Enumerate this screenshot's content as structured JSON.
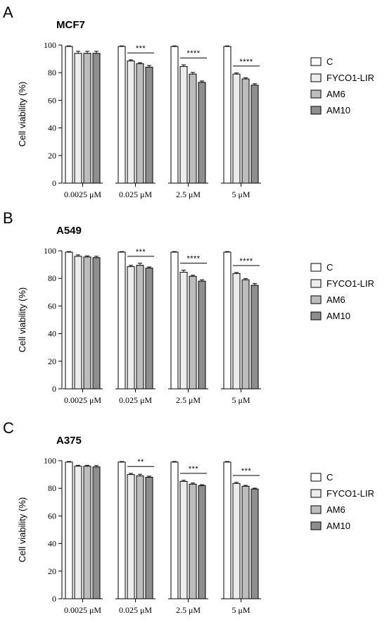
{
  "ylabel": "Cell viability (%)",
  "categories": [
    "0.0025 μM",
    "0.025 μM",
    "2.5 μM",
    "5 μM"
  ],
  "legend": [
    {
      "name": "C",
      "color": "#ffffff"
    },
    {
      "name": "FYCO1-LIR",
      "color": "#ececec"
    },
    {
      "name": "AM6",
      "color": "#bdbdbd"
    },
    {
      "name": "AM10",
      "color": "#8e8e8e"
    }
  ],
  "chart_data": [
    {
      "type": "bar",
      "panel_letter": "A",
      "title": "MCF7",
      "ylabel": "Cell viability (%)",
      "ylim": [
        0,
        100
      ],
      "yticks": [
        0,
        20,
        40,
        60,
        80,
        100
      ],
      "categories": [
        "0.0025 μM",
        "0.025 μM",
        "2.5 μM",
        "5 μM"
      ],
      "series": [
        {
          "name": "C",
          "values": [
            99,
            99,
            99,
            99
          ],
          "errors": [
            0.4,
            0.4,
            0.4,
            0.4
          ]
        },
        {
          "name": "FYCO1-LIR",
          "values": [
            94,
            88.5,
            84.5,
            79
          ],
          "errors": [
            1.5,
            0.8,
            1.2,
            0.8
          ]
        },
        {
          "name": "AM6",
          "values": [
            94,
            86.5,
            79,
            75.5
          ],
          "errors": [
            1.5,
            0.8,
            1.2,
            0.8
          ]
        },
        {
          "name": "AM10",
          "values": [
            94,
            84,
            73,
            71
          ],
          "errors": [
            1.5,
            1.2,
            1.0,
            1.0
          ]
        }
      ],
      "significance": [
        "",
        "***",
        "****",
        "****"
      ]
    },
    {
      "type": "bar",
      "panel_letter": "B",
      "title": "A549",
      "ylabel": "Cell viability (%)",
      "ylim": [
        0,
        100
      ],
      "yticks": [
        0,
        20,
        40,
        60,
        80,
        100
      ],
      "categories": [
        "0.0025 μM",
        "0.025 μM",
        "2.5 μM",
        "5 μM"
      ],
      "series": [
        {
          "name": "C",
          "values": [
            99,
            99,
            99,
            99
          ],
          "errors": [
            0.4,
            0.4,
            0.4,
            0.4
          ]
        },
        {
          "name": "FYCO1-LIR",
          "values": [
            96,
            88.5,
            84.5,
            83.5
          ],
          "errors": [
            1.0,
            1.0,
            1.5,
            0.8
          ]
        },
        {
          "name": "AM6",
          "values": [
            95.5,
            89.5,
            81.5,
            79
          ],
          "errors": [
            0.8,
            1.5,
            0.8,
            0.8
          ]
        },
        {
          "name": "AM10",
          "values": [
            95,
            87.5,
            78,
            75
          ],
          "errors": [
            1.0,
            0.8,
            1.0,
            1.2
          ]
        }
      ],
      "significance": [
        "",
        "***",
        "****",
        "****"
      ]
    },
    {
      "type": "bar",
      "panel_letter": "C",
      "title": "A375",
      "ylabel": "Cell viability (%)",
      "ylim": [
        0,
        100
      ],
      "yticks": [
        0,
        20,
        40,
        60,
        80,
        100
      ],
      "categories": [
        "0.0025 μM",
        "0.025 μM",
        "2.5 μM",
        "5 μM"
      ],
      "series": [
        {
          "name": "C",
          "values": [
            99,
            99,
            99,
            99
          ],
          "errors": [
            0.4,
            0.4,
            0.4,
            0.4
          ]
        },
        {
          "name": "FYCO1-LIR",
          "values": [
            96,
            90,
            85,
            83.5
          ],
          "errors": [
            0.6,
            0.8,
            0.8,
            0.8
          ]
        },
        {
          "name": "AM6",
          "values": [
            96,
            89,
            83,
            81.5
          ],
          "errors": [
            0.6,
            1.2,
            0.8,
            0.6
          ]
        },
        {
          "name": "AM10",
          "values": [
            95.5,
            88,
            82,
            79.5
          ],
          "errors": [
            1.0,
            0.8,
            0.6,
            0.6
          ]
        }
      ],
      "significance": [
        "",
        "**",
        "***",
        "***"
      ]
    }
  ]
}
